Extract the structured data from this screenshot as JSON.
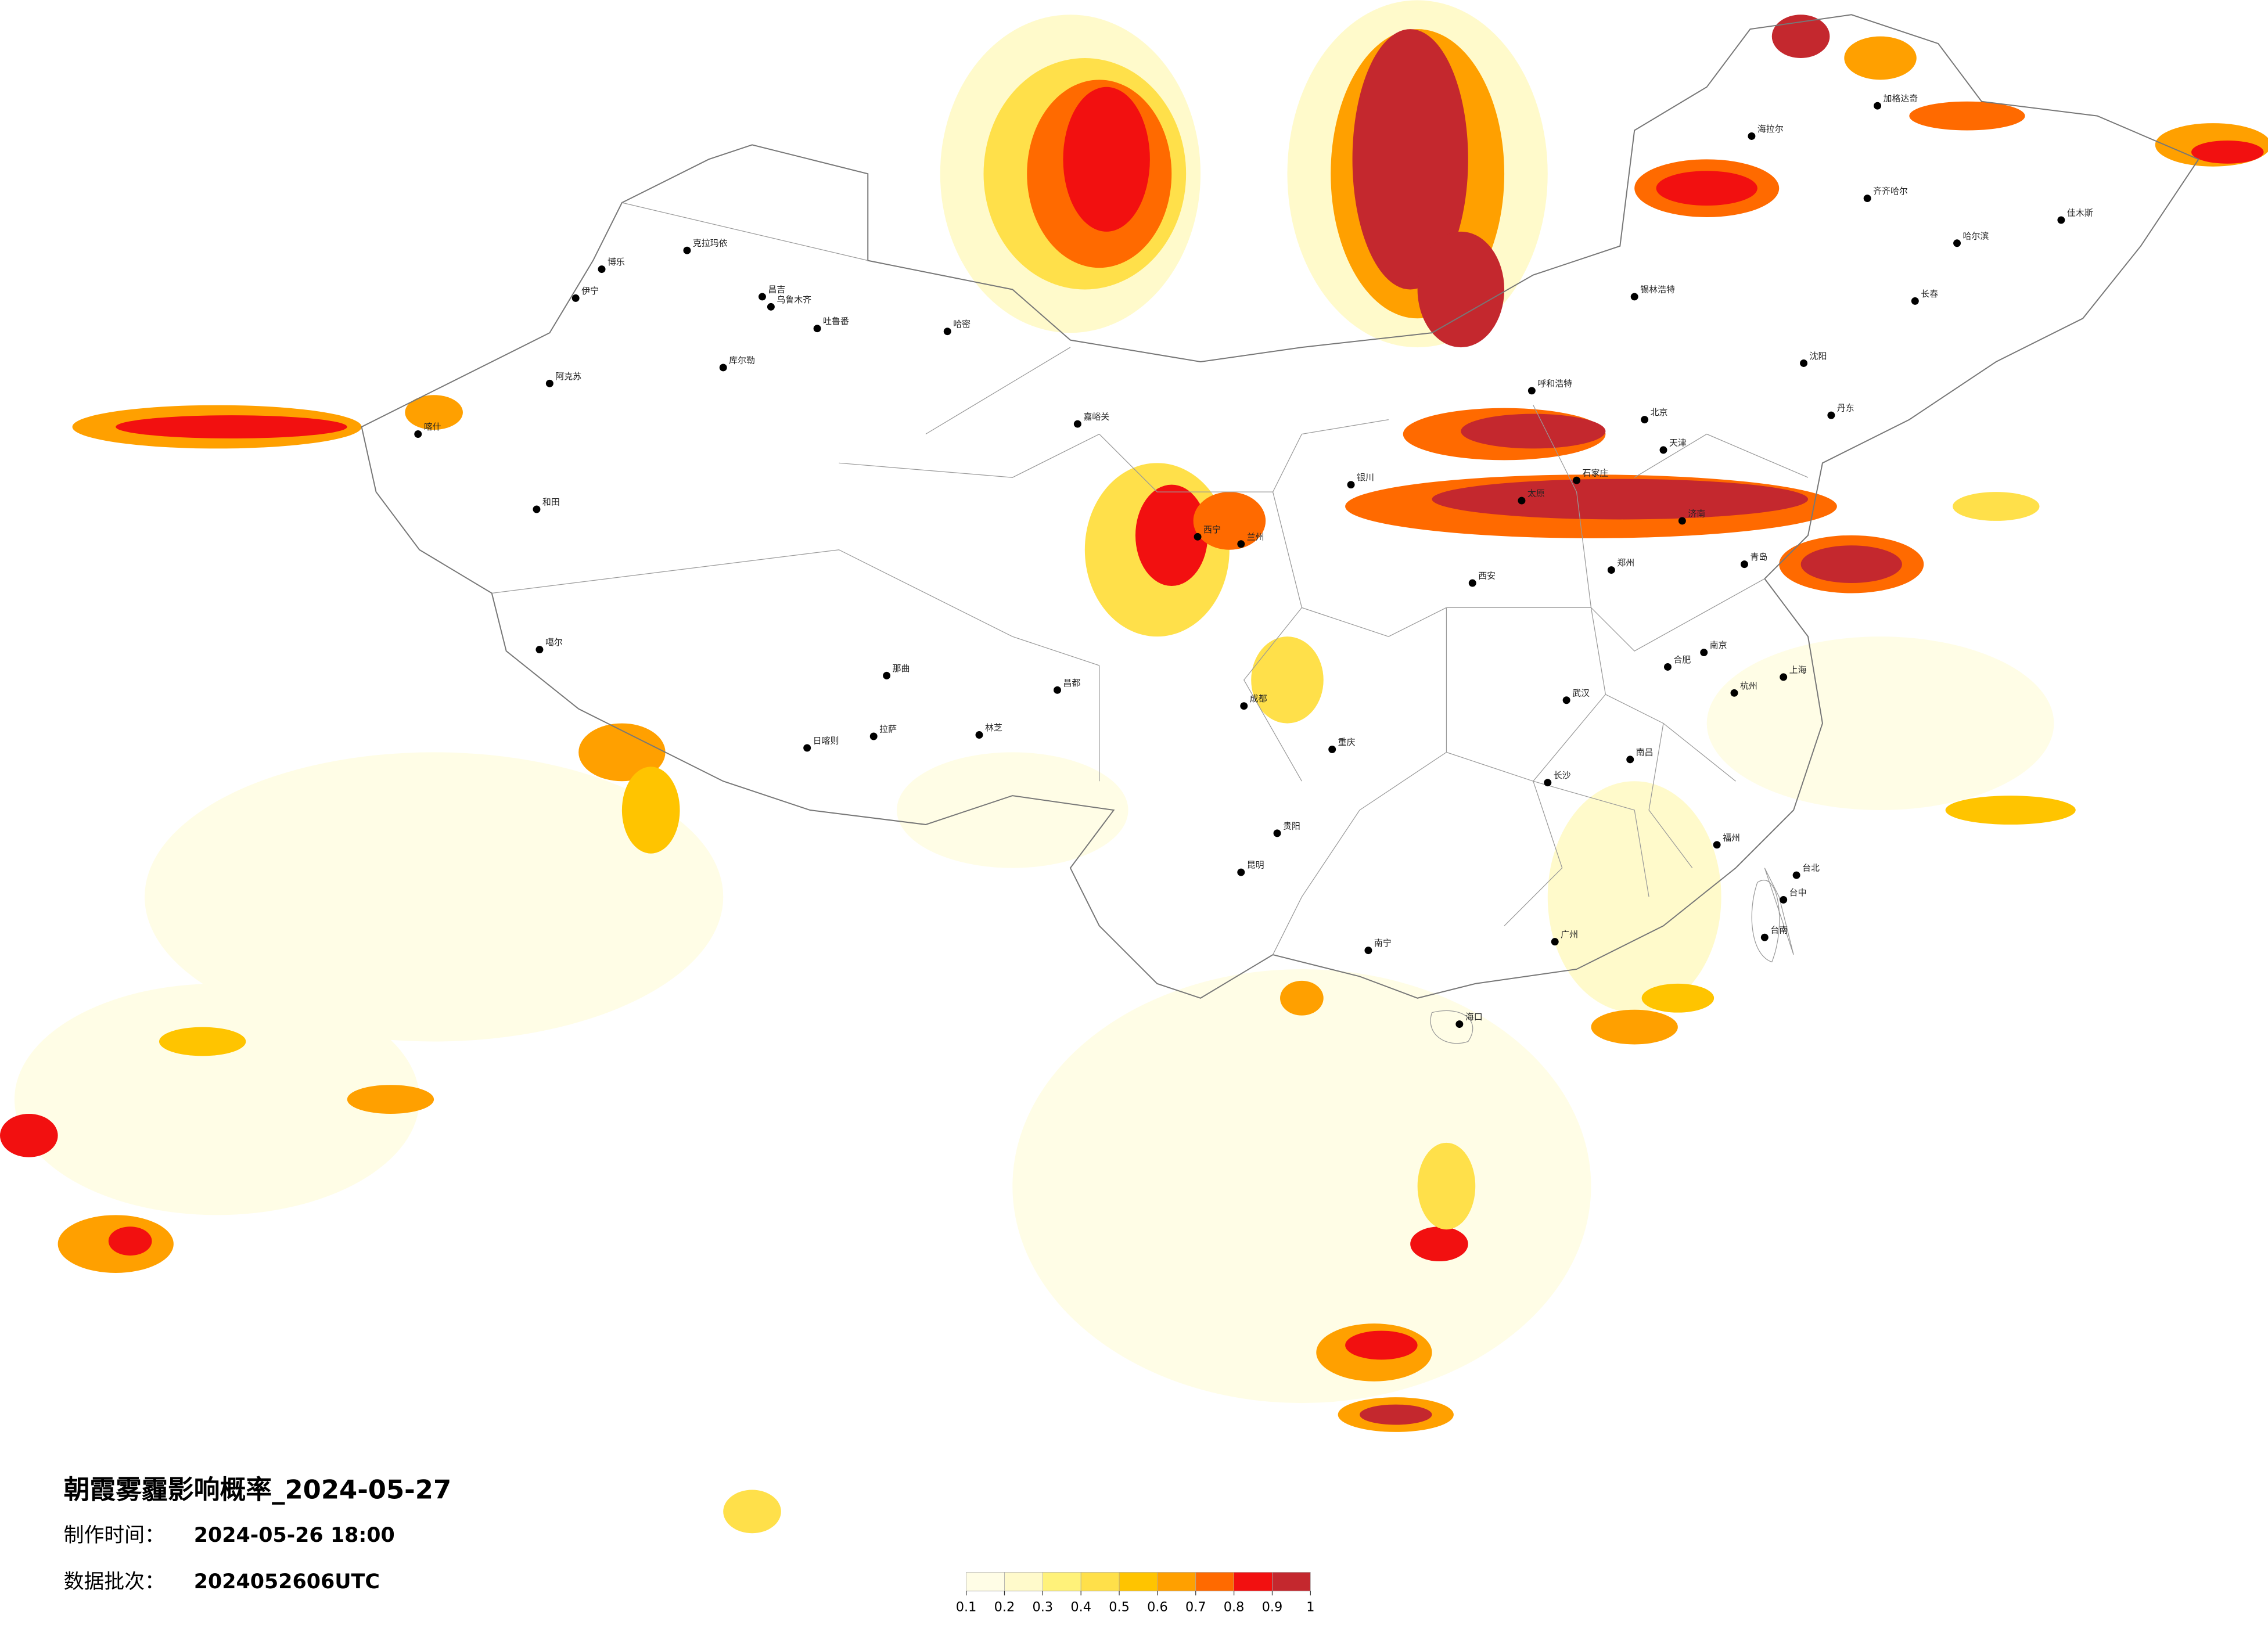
{
  "title": "朝霞雾霾影响概率_2024-05-27",
  "info": {
    "production_label": "制作时间：",
    "production_time": "2024-05-26 18:00",
    "batch_label": "数据批次：",
    "batch": "2024052606UTC"
  },
  "legend": {
    "ticks": [
      0.1,
      0.2,
      0.3,
      0.4,
      0.5,
      0.6,
      0.7,
      0.8,
      0.9,
      1
    ],
    "colors": [
      "#fffde6",
      "#fffacb",
      "#fff27a",
      "#ffe04a",
      "#ffc400",
      "#ffa000",
      "#ff6a00",
      "#f21010",
      "#c4282e"
    ]
  },
  "cities": [
    "克拉玛依",
    "昌吉",
    "乌鲁木齐",
    "吐鲁番",
    "哈密",
    "伊宁",
    "博乐",
    "库尔勒",
    "阿克苏",
    "喀什",
    "和田",
    "噶尔",
    "日喀则",
    "拉萨",
    "那曲",
    "林芝",
    "昌都",
    "嘉峪关",
    "西宁",
    "兰州",
    "银川",
    "成都",
    "重庆",
    "贵阳",
    "昆明",
    "南宁",
    "海口",
    "广州",
    "福州",
    "台北",
    "台中",
    "台南",
    "杭州",
    "上海",
    "南京",
    "合肥",
    "武汉",
    "长沙",
    "南昌",
    "郑州",
    "西安",
    "太原",
    "石家庄",
    "北京",
    "天津",
    "济南",
    "青岛",
    "沈阳",
    "长春",
    "哈尔滨",
    "呼和浩特",
    "海拉尔",
    "齐齐哈尔",
    "佳木斯",
    "加格达奇",
    "锡林浩特",
    "丹东"
  ]
}
